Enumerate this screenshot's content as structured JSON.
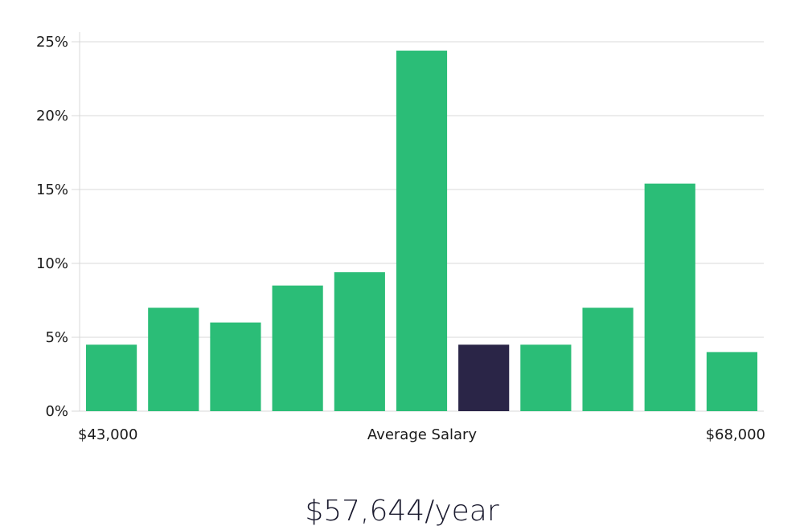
{
  "chart_data": {
    "type": "bar",
    "values": [
      4.5,
      7.0,
      6.0,
      8.5,
      9.4,
      24.4,
      4.5,
      4.5,
      7.0,
      15.4,
      4.0
    ],
    "highlight_index": 6,
    "ylim": [
      0,
      25
    ],
    "yticks": [
      0,
      5,
      10,
      15,
      20,
      25
    ],
    "ytick_labels": [
      "0%",
      "5%",
      "10%",
      "15%",
      "20%",
      "25%"
    ],
    "xlabel_left": "$43,000",
    "xlabel_center": "Average Salary",
    "xlabel_right": "$68,000",
    "grid": true,
    "colors": {
      "bar": "#2bbd77",
      "bar_highlight": "#2a2547",
      "grid": "#d9d9d9"
    }
  },
  "summary": {
    "salary": "$57,644/year"
  }
}
